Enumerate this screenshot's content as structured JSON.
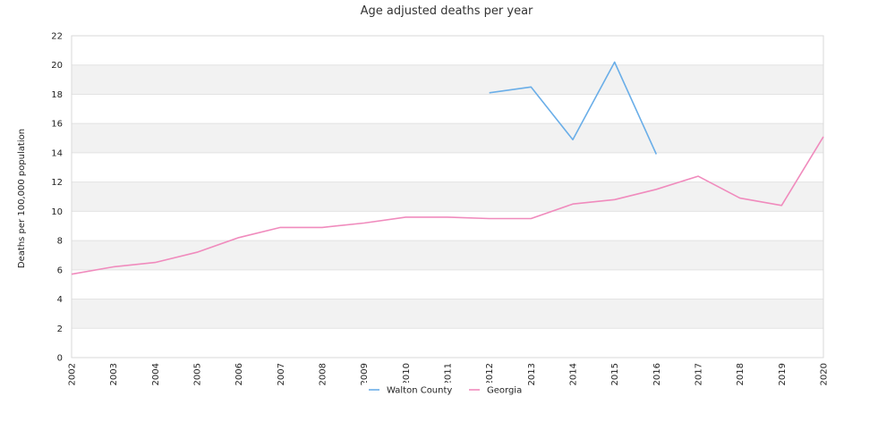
{
  "chart_data": {
    "type": "line",
    "title": "Age adjusted deaths per year",
    "xlabel": "",
    "ylabel": "Deaths per 100,000 population",
    "x": [
      "2002",
      "2003",
      "2004",
      "2005",
      "2006",
      "2007",
      "2008",
      "2009",
      "2010",
      "2011",
      "2012",
      "2013",
      "2014",
      "2015",
      "2016",
      "2017",
      "2018",
      "2019",
      "2020"
    ],
    "ylim": [
      0,
      22
    ],
    "yticks": [
      0,
      2,
      4,
      6,
      8,
      10,
      12,
      14,
      16,
      18,
      20,
      22
    ],
    "grid": true,
    "legend": "bottom-center",
    "series": [
      {
        "name": "Walton County",
        "color": "#6aaee8",
        "values": [
          null,
          null,
          null,
          null,
          null,
          null,
          null,
          null,
          null,
          null,
          18.1,
          18.5,
          14.9,
          20.2,
          13.9,
          null,
          null,
          null,
          null
        ]
      },
      {
        "name": "Georgia",
        "color": "#f08bbd",
        "values": [
          5.7,
          6.2,
          6.5,
          7.2,
          8.2,
          8.9,
          8.9,
          9.2,
          9.6,
          9.6,
          9.5,
          9.5,
          10.5,
          10.8,
          11.5,
          12.4,
          10.9,
          10.4,
          15.1
        ]
      }
    ]
  }
}
